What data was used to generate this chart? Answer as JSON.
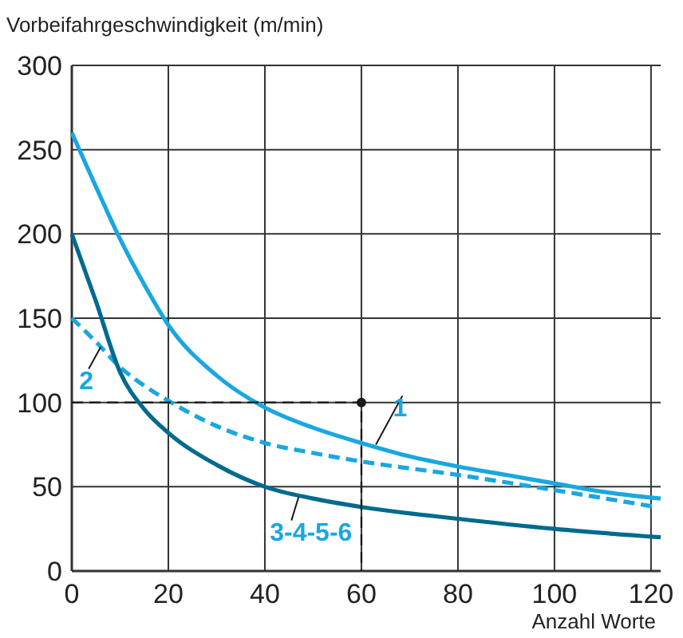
{
  "chart_data": {
    "type": "line",
    "xlabel": "Anzahl Worte",
    "ylabel": "Vorbeifahrgeschwindigkeit (m/min)",
    "xlim": [
      0,
      122
    ],
    "ylim": [
      0,
      300
    ],
    "xticks": [
      0,
      20,
      40,
      60,
      80,
      100,
      120
    ],
    "yticks": [
      0,
      50,
      100,
      150,
      200,
      250,
      300
    ],
    "grid": true,
    "legend": false,
    "series": [
      {
        "name": "1",
        "color": "#1aa7e0",
        "line_style": "solid",
        "x": [
          0,
          5,
          10,
          15,
          20,
          30,
          40,
          50,
          60,
          70,
          80,
          90,
          100,
          110,
          122
        ],
        "values": [
          260,
          228,
          197,
          170,
          146,
          116,
          97,
          85,
          76,
          68,
          62,
          57,
          52,
          47,
          43
        ]
      },
      {
        "name": "2",
        "color": "#1aa7e0",
        "line_style": "dashed",
        "x": [
          0,
          5,
          10,
          15,
          20,
          30,
          40,
          50,
          60,
          80,
          100,
          121
        ],
        "values": [
          150,
          136,
          121,
          110,
          101,
          86,
          76,
          70,
          65,
          57,
          48,
          38
        ]
      },
      {
        "name": "3-4-5-6",
        "color": "#006a8e",
        "line_style": "solid",
        "x": [
          0,
          5,
          10,
          15,
          20,
          30,
          40,
          50,
          60,
          80,
          100,
          122
        ],
        "values": [
          200,
          160,
          118,
          96,
          82,
          63,
          50,
          43,
          38,
          31,
          25,
          20
        ]
      },
      {
        "color": "#1a1a1a",
        "line_style": "dashed",
        "x": [
          0,
          60,
          60
        ],
        "values": [
          100,
          100,
          0
        ]
      },
      {
        "type": "scatter",
        "color": "#1a1a1a",
        "marker": "circle",
        "x": [
          60
        ],
        "values": [
          100
        ]
      }
    ]
  }
}
